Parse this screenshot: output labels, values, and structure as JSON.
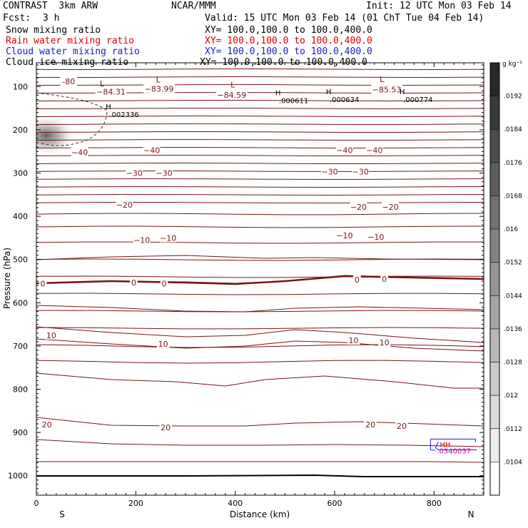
{
  "header": {
    "model": "CONTRAST  3km ARW",
    "org": "NCAR/MMM",
    "init": "Init: 12 UTC Mon 03 Feb 14",
    "fcst_label": "Fcst:",
    "fcst_value": "3 h",
    "valid": "Valid: 15 UTC Mon 03 Feb 14 (01 ChT Tue 04 Feb 14)",
    "fields": [
      {
        "label": "Snow mixing ratio",
        "xy": "XY= 100.0,100.0 to 100.0,400.0",
        "color": "#000000"
      },
      {
        "label": "Rain water mixing ratio",
        "xy": "XY= 100.0,100.0 to 100.0,400.0",
        "color": "#dd0000"
      },
      {
        "label": "Cloud water mixing ratio",
        "xy": "XY= 100.0,100.0 to 100.0,400.0",
        "color": "#1a1acc"
      },
      {
        "label": "Cloud ice mixing ratio",
        "xy": "XY= 100.0,100.0 to 100.0,400.0",
        "color": "#000000"
      }
    ]
  },
  "colors": {
    "contour": "#7a1414",
    "frame": "#000000",
    "cloud_water": "#1a1acc"
  },
  "chart_data": {
    "type": "cross-section",
    "xlabel": "Distance (km)",
    "ylabel": "Pressure (hPa)",
    "xlim": [
      0,
      900
    ],
    "ylim": [
      1045,
      45
    ],
    "x_ticks": [
      0,
      200,
      400,
      600,
      800
    ],
    "y_ticks": [
      100,
      200,
      300,
      400,
      500,
      600,
      700,
      800,
      900,
      1000
    ],
    "x_endpoints": {
      "left": "S",
      "right": "N"
    },
    "colorbar": {
      "unit": "g kg⁻¹",
      "ticks": [
        ".0192",
        ".0184",
        ".0176",
        ".0168",
        ".016",
        ".0152",
        ".0144",
        ".0136",
        ".0128",
        ".012",
        ".0112",
        ".0104"
      ]
    },
    "temperature_labels": [
      {
        "text": "-80",
        "x": 65,
        "p": 88
      },
      {
        "text": "−84.31",
        "x": 150,
        "p": 112
      },
      {
        "text": "−83.99",
        "x": 247,
        "p": 105
      },
      {
        "text": "−84.59",
        "x": 393,
        "p": 119
      },
      {
        "text": "−85.53",
        "x": 705,
        "p": 107
      },
      {
        "text": "−40",
        "x": 87,
        "p": 252
      },
      {
        "text": "−40",
        "x": 232,
        "p": 247
      },
      {
        "text": "−40",
        "x": 620,
        "p": 247
      },
      {
        "text": "−40",
        "x": 680,
        "p": 247
      },
      {
        "text": "−30",
        "x": 197,
        "p": 300
      },
      {
        "text": "−30",
        "x": 257,
        "p": 300
      },
      {
        "text": "−30",
        "x": 590,
        "p": 297
      },
      {
        "text": "−30",
        "x": 652,
        "p": 297
      },
      {
        "text": "−20",
        "x": 177,
        "p": 373
      },
      {
        "text": "−20",
        "x": 648,
        "p": 378
      },
      {
        "text": "−20",
        "x": 712,
        "p": 378
      },
      {
        "text": "−10",
        "x": 212,
        "p": 455
      },
      {
        "text": "−10",
        "x": 265,
        "p": 450
      },
      {
        "text": "−10",
        "x": 620,
        "p": 444
      },
      {
        "text": "−10",
        "x": 683,
        "p": 448
      },
      {
        "text": "0",
        "x": 13,
        "p": 556
      },
      {
        "text": "0",
        "x": 196,
        "p": 553
      },
      {
        "text": "0",
        "x": 257,
        "p": 556
      },
      {
        "text": "0",
        "x": 645,
        "p": 547
      },
      {
        "text": "0",
        "x": 700,
        "p": 545
      },
      {
        "text": "10",
        "x": 30,
        "p": 675
      },
      {
        "text": "10",
        "x": 255,
        "p": 695
      },
      {
        "text": "10",
        "x": 638,
        "p": 687
      },
      {
        "text": "10",
        "x": 700,
        "p": 692
      },
      {
        "text": "20",
        "x": 21,
        "p": 882
      },
      {
        "text": "20",
        "x": 260,
        "p": 888
      },
      {
        "text": "20",
        "x": 672,
        "p": 882
      },
      {
        "text": "20",
        "x": 735,
        "p": 885
      }
    ],
    "low_markers": [
      {
        "text": "L",
        "x": 132,
        "p": 93
      },
      {
        "text": "L",
        "x": 245,
        "p": 84
      },
      {
        "text": "L",
        "x": 395,
        "p": 95
      },
      {
        "text": "L",
        "x": 695,
        "p": 83
      }
    ],
    "high_markers": [
      {
        "text": "H",
        "x": 145,
        "p": 152,
        "value": ".002336"
      },
      {
        "text": "H",
        "x": 486,
        "p": 120,
        "value": ".000611"
      },
      {
        "text": "H",
        "x": 588,
        "p": 118,
        "value": ".000634"
      },
      {
        "text": "H",
        "x": 736,
        "p": 118,
        "value": ".000774"
      }
    ],
    "cloud_water_label": {
      "text": "HH",
      "value": ".0340037",
      "x": 800,
      "p": 935
    },
    "shaded_region": {
      "x": 20,
      "p": 213,
      "note": "cloud ice"
    }
  }
}
